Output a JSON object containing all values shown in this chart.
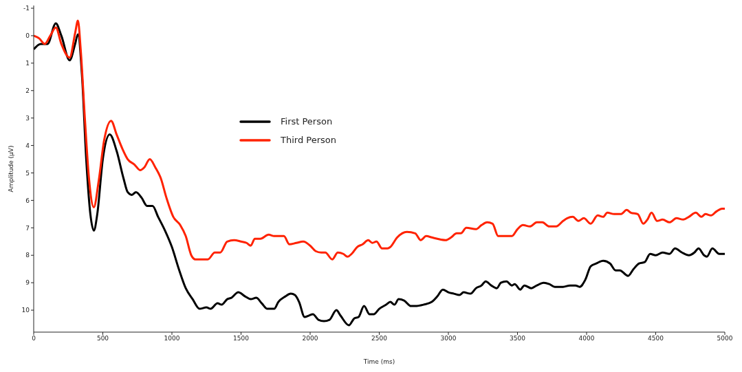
{
  "chart_data": {
    "type": "line",
    "xlabel": "Time (ms)",
    "ylabel": "Amplitude (µV)",
    "xlim": [
      0,
      5000
    ],
    "xticks": [
      0,
      500,
      1000,
      1500,
      2000,
      2500,
      3000,
      3500,
      4000,
      4500,
      5000
    ],
    "ylim": [
      10.8,
      -1.1
    ],
    "yticks": [
      -1,
      0,
      1,
      2,
      3,
      4,
      5,
      6,
      7,
      8,
      9,
      10
    ],
    "grid": false,
    "legend": "top",
    "marker": "none",
    "line_style": "solid",
    "series": [
      {
        "name": "First Person",
        "color": "#000000",
        "x": [
          0,
          50,
          100,
          160,
          200,
          260,
          300,
          320,
          350,
          380,
          410,
          435,
          460,
          500,
          550,
          600,
          650,
          680,
          710,
          740,
          780,
          820,
          860,
          900,
          950,
          1000,
          1050,
          1100,
          1150,
          1200,
          1250,
          1280,
          1330,
          1360,
          1400,
          1430,
          1480,
          1530,
          1570,
          1610,
          1650,
          1690,
          1740,
          1770,
          1820,
          1860,
          1890,
          1920,
          1960,
          1990,
          2020,
          2060,
          2100,
          2140,
          2190,
          2220,
          2280,
          2320,
          2350,
          2390,
          2430,
          2460,
          2500,
          2550,
          2580,
          2610,
          2640,
          2680,
          2730,
          2760,
          2820,
          2880,
          2920,
          2960,
          3000,
          3040,
          3080,
          3110,
          3160,
          3200,
          3240,
          3270,
          3310,
          3350,
          3380,
          3420,
          3460,
          3480,
          3520,
          3550,
          3600,
          3640,
          3690,
          3730,
          3770,
          3830,
          3880,
          3920,
          3950,
          3990,
          4030,
          4070,
          4120,
          4170,
          4210,
          4240,
          4300,
          4340,
          4380,
          4420,
          4460,
          4500,
          4550,
          4600,
          4640,
          4690,
          4740,
          4780,
          4810,
          4850,
          4870,
          4910,
          4960,
          5000
        ],
        "values": [
          0.5,
          0.3,
          0.3,
          -0.45,
          0.0,
          0.9,
          0.3,
          -0.05,
          1.5,
          4.5,
          6.5,
          7.1,
          6.5,
          4.5,
          3.6,
          4.2,
          5.2,
          5.7,
          5.8,
          5.7,
          5.9,
          6.2,
          6.2,
          6.6,
          7.1,
          7.7,
          8.5,
          9.2,
          9.6,
          9.95,
          9.9,
          9.95,
          9.75,
          9.8,
          9.6,
          9.55,
          9.35,
          9.5,
          9.6,
          9.55,
          9.75,
          9.95,
          9.95,
          9.7,
          9.5,
          9.4,
          9.45,
          9.7,
          10.25,
          10.2,
          10.15,
          10.35,
          10.4,
          10.35,
          10.0,
          10.2,
          10.55,
          10.3,
          10.25,
          9.85,
          10.15,
          10.15,
          9.95,
          9.8,
          9.7,
          9.8,
          9.6,
          9.65,
          9.85,
          9.85,
          9.8,
          9.7,
          9.5,
          9.25,
          9.35,
          9.4,
          9.45,
          9.35,
          9.4,
          9.2,
          9.1,
          8.95,
          9.1,
          9.2,
          9.0,
          8.95,
          9.1,
          9.05,
          9.25,
          9.1,
          9.2,
          9.1,
          9.0,
          9.05,
          9.15,
          9.15,
          9.1,
          9.1,
          9.15,
          8.9,
          8.4,
          8.3,
          8.2,
          8.3,
          8.55,
          8.55,
          8.75,
          8.5,
          8.3,
          8.25,
          7.95,
          8.0,
          7.9,
          7.95,
          7.75,
          7.9,
          8.0,
          7.9,
          7.75,
          8.0,
          8.05,
          7.75,
          7.95,
          7.95
        ]
      },
      {
        "name": "Third Person",
        "color": "#ff2200",
        "x": [
          0,
          40,
          80,
          120,
          160,
          200,
          260,
          300,
          320,
          340,
          370,
          400,
          435,
          470,
          510,
          560,
          600,
          640,
          680,
          730,
          770,
          800,
          840,
          880,
          920,
          960,
          1010,
          1060,
          1100,
          1140,
          1170,
          1220,
          1260,
          1310,
          1350,
          1400,
          1450,
          1500,
          1540,
          1570,
          1600,
          1640,
          1700,
          1740,
          1780,
          1810,
          1850,
          1900,
          1950,
          2000,
          2040,
          2080,
          2110,
          2160,
          2200,
          2240,
          2270,
          2300,
          2340,
          2380,
          2420,
          2450,
          2480,
          2520,
          2560,
          2580,
          2630,
          2700,
          2760,
          2800,
          2840,
          2880,
          2920,
          2980,
          3020,
          3060,
          3090,
          3130,
          3200,
          3240,
          3280,
          3320,
          3360,
          3420,
          3460,
          3500,
          3540,
          3590,
          3640,
          3680,
          3730,
          3780,
          3830,
          3860,
          3900,
          3940,
          3980,
          4030,
          4080,
          4120,
          4150,
          4200,
          4250,
          4290,
          4320,
          4370,
          4410,
          4440,
          4470,
          4510,
          4550,
          4600,
          4650,
          4700,
          4740,
          4790,
          4830,
          4860,
          4900,
          4940,
          4980,
          5000
        ],
        "values": [
          0.0,
          0.1,
          0.3,
          0.0,
          -0.3,
          0.3,
          0.8,
          -0.1,
          -0.55,
          0.5,
          3,
          5.2,
          6.25,
          5.3,
          3.8,
          3.1,
          3.6,
          4.1,
          4.5,
          4.7,
          4.9,
          4.8,
          4.5,
          4.8,
          5.2,
          5.9,
          6.6,
          6.9,
          7.3,
          8.0,
          8.15,
          8.15,
          8.15,
          7.9,
          7.9,
          7.5,
          7.45,
          7.5,
          7.55,
          7.65,
          7.4,
          7.4,
          7.25,
          7.3,
          7.3,
          7.3,
          7.6,
          7.55,
          7.5,
          7.65,
          7.85,
          7.9,
          7.9,
          8.15,
          7.9,
          7.95,
          8.05,
          7.95,
          7.7,
          7.6,
          7.45,
          7.55,
          7.5,
          7.75,
          7.75,
          7.7,
          7.35,
          7.15,
          7.2,
          7.45,
          7.3,
          7.35,
          7.4,
          7.45,
          7.35,
          7.2,
          7.2,
          7.0,
          7.05,
          6.9,
          6.8,
          6.85,
          7.3,
          7.3,
          7.3,
          7.05,
          6.9,
          6.95,
          6.8,
          6.8,
          6.95,
          6.95,
          6.75,
          6.65,
          6.6,
          6.75,
          6.65,
          6.85,
          6.55,
          6.6,
          6.45,
          6.5,
          6.5,
          6.35,
          6.45,
          6.5,
          6.85,
          6.7,
          6.45,
          6.75,
          6.7,
          6.8,
          6.65,
          6.7,
          6.6,
          6.45,
          6.6,
          6.5,
          6.55,
          6.4,
          6.3,
          6.3
        ]
      }
    ]
  }
}
